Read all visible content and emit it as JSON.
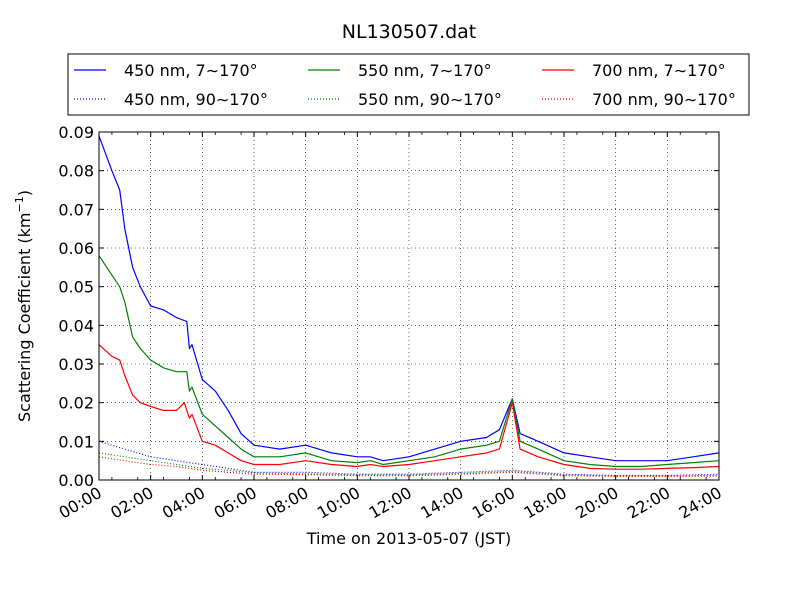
{
  "chart_data": {
    "type": "line",
    "title": "NL130507.dat",
    "xlabel": "Time on 2013-05-07 (JST)",
    "ylabel_main": "Scattering Coefficient (km",
    "ylabel_sup": "−1",
    "ylabel_close": ")",
    "x_unit": "hours",
    "xlim": [
      0,
      24
    ],
    "ylim": [
      0,
      0.09
    ],
    "xticks": [
      0,
      2,
      4,
      6,
      8,
      10,
      12,
      14,
      16,
      18,
      20,
      22,
      24
    ],
    "xtick_labels": [
      "00:00",
      "02:00",
      "04:00",
      "06:00",
      "08:00",
      "10:00",
      "12:00",
      "14:00",
      "16:00",
      "18:00",
      "20:00",
      "22:00",
      "24:00"
    ],
    "yticks": [
      0,
      0.01,
      0.02,
      0.03,
      0.04,
      0.05,
      0.06,
      0.07,
      0.08,
      0.09
    ],
    "ytick_labels": [
      "0.00",
      "0.01",
      "0.02",
      "0.03",
      "0.04",
      "0.05",
      "0.06",
      "0.07",
      "0.08",
      "0.09"
    ],
    "grid": true,
    "legend_position": "top, above plot, 3 columns",
    "series": [
      {
        "name": "450 nm, 7∼170°",
        "color": "#0000ff",
        "style": "solid",
        "x": [
          0,
          0.5,
          0.8,
          1,
          1.3,
          1.6,
          2,
          2.5,
          3,
          3.4,
          3.5,
          3.6,
          4,
          4.5,
          5,
          5.5,
          6,
          7,
          8,
          9,
          10,
          10.5,
          11,
          12,
          13,
          14,
          15,
          15.5,
          16,
          16.3,
          17,
          18,
          19,
          20,
          21,
          22,
          23,
          24
        ],
        "y": [
          0.089,
          0.08,
          0.075,
          0.065,
          0.055,
          0.05,
          0.045,
          0.044,
          0.042,
          0.041,
          0.034,
          0.035,
          0.026,
          0.023,
          0.018,
          0.012,
          0.009,
          0.008,
          0.009,
          0.007,
          0.006,
          0.006,
          0.005,
          0.006,
          0.008,
          0.01,
          0.011,
          0.013,
          0.021,
          0.012,
          0.01,
          0.007,
          0.006,
          0.005,
          0.005,
          0.005,
          0.006,
          0.007
        ]
      },
      {
        "name": "550 nm, 7∼170°",
        "color": "#008000",
        "style": "solid",
        "x": [
          0,
          0.5,
          0.8,
          1,
          1.3,
          1.6,
          2,
          2.5,
          3,
          3.4,
          3.5,
          3.6,
          4,
          4.5,
          5,
          5.5,
          6,
          7,
          8,
          9,
          10,
          10.5,
          11,
          12,
          13,
          14,
          15,
          15.5,
          16,
          16.3,
          17,
          18,
          19,
          20,
          21,
          22,
          23,
          24
        ],
        "y": [
          0.058,
          0.053,
          0.05,
          0.046,
          0.037,
          0.034,
          0.031,
          0.029,
          0.028,
          0.028,
          0.023,
          0.024,
          0.017,
          0.014,
          0.011,
          0.008,
          0.006,
          0.006,
          0.007,
          0.005,
          0.0045,
          0.005,
          0.004,
          0.005,
          0.006,
          0.008,
          0.009,
          0.01,
          0.021,
          0.01,
          0.008,
          0.005,
          0.004,
          0.0035,
          0.0035,
          0.004,
          0.0045,
          0.005
        ]
      },
      {
        "name": "700 nm, 7∼170°",
        "color": "#ff0000",
        "style": "solid",
        "x": [
          0,
          0.5,
          0.8,
          1,
          1.3,
          1.6,
          2,
          2.5,
          3,
          3.3,
          3.5,
          3.6,
          4,
          4.5,
          5,
          5.5,
          6,
          7,
          8,
          9,
          10,
          10.5,
          11,
          12,
          13,
          14,
          15,
          15.5,
          16,
          16.3,
          17,
          18,
          19,
          20,
          21,
          22,
          23,
          24
        ],
        "y": [
          0.035,
          0.032,
          0.031,
          0.027,
          0.022,
          0.02,
          0.019,
          0.018,
          0.018,
          0.02,
          0.016,
          0.017,
          0.01,
          0.009,
          0.007,
          0.005,
          0.004,
          0.004,
          0.005,
          0.004,
          0.0035,
          0.004,
          0.0035,
          0.004,
          0.005,
          0.006,
          0.007,
          0.008,
          0.02,
          0.008,
          0.006,
          0.004,
          0.003,
          0.0028,
          0.0028,
          0.003,
          0.0032,
          0.0035
        ]
      },
      {
        "name": "450 nm, 90∼170°",
        "color": "#0000ff",
        "style": "dotted",
        "x": [
          0,
          1,
          2,
          3,
          4,
          5,
          6,
          8,
          10,
          12,
          14,
          16,
          18,
          20,
          22,
          24
        ],
        "y": [
          0.01,
          0.008,
          0.006,
          0.005,
          0.004,
          0.003,
          0.002,
          0.002,
          0.0015,
          0.0015,
          0.002,
          0.0025,
          0.0015,
          0.0012,
          0.0012,
          0.0015
        ]
      },
      {
        "name": "550 nm, 90∼170°",
        "color": "#008000",
        "style": "dotted",
        "x": [
          0,
          1,
          2,
          3,
          4,
          5,
          6,
          8,
          10,
          12,
          14,
          16,
          18,
          20,
          22,
          24
        ],
        "y": [
          0.007,
          0.006,
          0.005,
          0.004,
          0.003,
          0.0025,
          0.0018,
          0.0016,
          0.0013,
          0.0013,
          0.0017,
          0.0022,
          0.0013,
          0.001,
          0.001,
          0.0012
        ]
      },
      {
        "name": "700 nm, 90∼170°",
        "color": "#ff0000",
        "style": "dotted",
        "x": [
          0,
          1,
          2,
          3,
          4,
          5,
          6,
          8,
          10,
          12,
          14,
          16,
          18,
          20,
          22,
          24
        ],
        "y": [
          0.006,
          0.005,
          0.004,
          0.0035,
          0.0025,
          0.002,
          0.0015,
          0.0014,
          0.0011,
          0.0011,
          0.0015,
          0.002,
          0.0011,
          0.0009,
          0.0009,
          0.001
        ]
      }
    ]
  }
}
